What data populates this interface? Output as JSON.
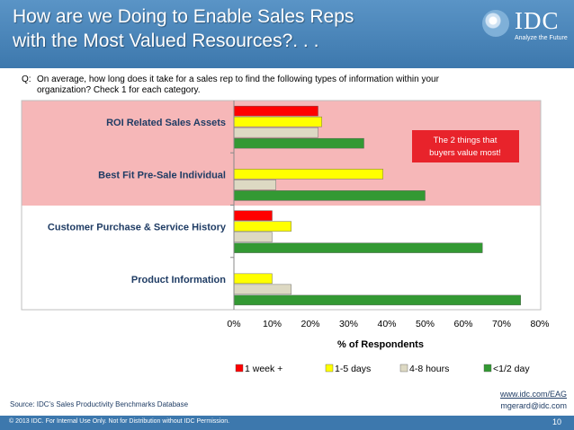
{
  "slide": {
    "title_line1": "How are we Doing to Enable Sales Reps",
    "title_line2": "with the Most Valued Resources?. . .",
    "logo_text": "IDC",
    "logo_tagline": "Analyze the Future",
    "question_prefix": "Q:",
    "question_text": "On average, how long does it take for a sales rep to find the following types of information within your organization? Check 1 for each category.",
    "callout_line1": "The 2 things that",
    "callout_line2": "buyers value most!",
    "source": "Source: IDC's Sales Productivity Benchmarks Database",
    "website": "www.idc.com/EAG",
    "email": "mgerard@idc.com",
    "copyright": "© 2013 IDC. For Internal Use Only.  Not for Distribution without IDC Permission.",
    "page_number": "10"
  },
  "colors": {
    "header": "#3d78ad",
    "highlight": "#f6b7b8",
    "callout": "#e8232b"
  },
  "chart_data": {
    "type": "bar",
    "orientation": "horizontal",
    "categories": [
      "ROI Related Sales Assets",
      "Best Fit Pre-Sale Individual",
      "Customer Purchase & Service History",
      "Product Information"
    ],
    "series": [
      {
        "name": "1 week +",
        "color": "#ff0000",
        "values": [
          22,
          0,
          10,
          0
        ]
      },
      {
        "name": "1-5 days",
        "color": "#ffff00",
        "values": [
          23,
          39,
          15,
          10
        ]
      },
      {
        "name": "4-8 hours",
        "color": "#ddd9c3",
        "values": [
          22,
          11,
          10,
          15
        ]
      },
      {
        "name": "<1/2 day",
        "color": "#339933",
        "values": [
          34,
          50,
          65,
          75
        ]
      }
    ],
    "xlabel": "% of Respondents",
    "xlim": [
      0,
      80
    ],
    "xticks": [
      "0%",
      "10%",
      "20%",
      "30%",
      "40%",
      "50%",
      "60%",
      "70%",
      "80%"
    ],
    "grid": false,
    "legend_position": "bottom",
    "highlighted_categories": [
      "ROI Related Sales Assets",
      "Best Fit Pre-Sale Individual"
    ]
  }
}
